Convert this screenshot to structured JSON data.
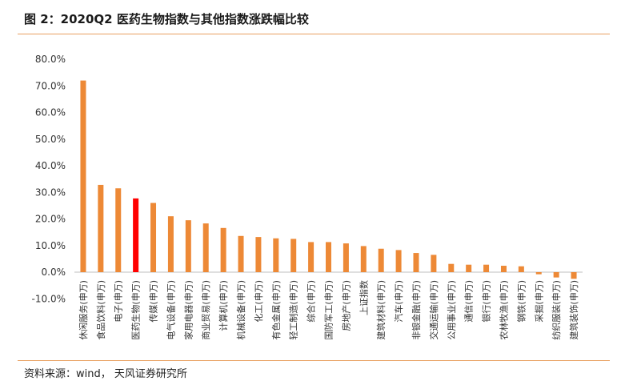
{
  "header": {
    "title": "图 2：2020Q2 医药生物指数与其他指数涨跌幅比较"
  },
  "footer": {
    "source": "资料来源：wind，  天风证券研究所"
  },
  "colors": {
    "bar": "#ED8936",
    "highlight": "#FF0000",
    "rule": "#E8A060",
    "axis": "#BFBFBF"
  },
  "chart_data": {
    "type": "bar",
    "title": "",
    "xlabel": "",
    "ylabel": "",
    "ylim": [
      -10,
      80
    ],
    "yticks": [
      "80.0%",
      "70.0%",
      "60.0%",
      "50.0%",
      "40.0%",
      "30.0%",
      "20.0%",
      "10.0%",
      "0.0%",
      "-10.0%"
    ],
    "ytick_values": [
      80,
      70,
      60,
      50,
      40,
      30,
      20,
      10,
      0,
      -10
    ],
    "grid": false,
    "legend": "none",
    "highlight_category": "医药生物(申万)",
    "categories": [
      "休闲服务(申万)",
      "食品饮料(申万)",
      "电子(申万)",
      "医药生物(申万)",
      "传媒(申万)",
      "电气设备(申万)",
      "家用电器(申万)",
      "商业贸易(申万)",
      "计算机(申万)",
      "机械设备(申万)",
      "化工(申万)",
      "有色金属(申万)",
      "轻工制造(申万)",
      "综合(申万)",
      "国防军工(申万)",
      "房地产(申万)",
      "上证指数",
      "建筑材料(申万)",
      "汽车(申万)",
      "非银金融(申万)",
      "交通运输(申万)",
      "公用事业(申万)",
      "通信(申万)",
      "银行(申万)",
      "农林牧渔(申万)",
      "钢铁(申万)",
      "采掘(申万)",
      "纺织服装(申万)",
      "建筑装饰(申万)"
    ],
    "values": [
      72.0,
      32.8,
      31.5,
      27.7,
      26.0,
      21.0,
      19.5,
      18.3,
      16.6,
      13.6,
      13.2,
      12.7,
      12.5,
      11.3,
      11.3,
      10.8,
      9.8,
      8.8,
      8.3,
      7.2,
      6.5,
      3.1,
      2.8,
      2.8,
      2.4,
      2.2,
      -0.8,
      -2.0,
      -2.5
    ]
  }
}
